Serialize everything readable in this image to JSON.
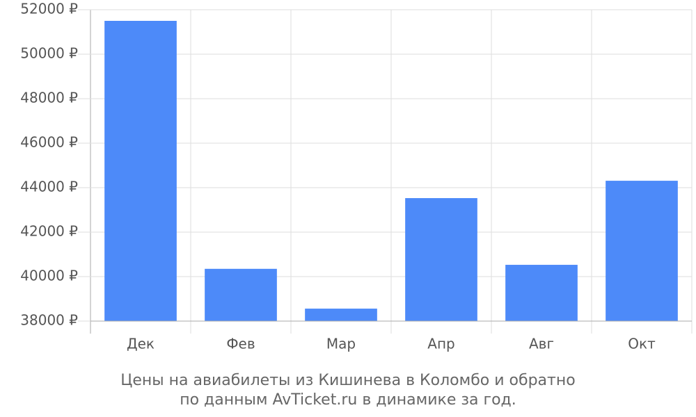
{
  "chart_data": {
    "type": "bar",
    "caption": [
      "Цены на авиабилеты из Кишинева в Коломбо и обратно",
      "по данным AvTicket.ru в динамике за год."
    ],
    "categories": [
      "Дек",
      "Фев",
      "Мар",
      "Апр",
      "Авг",
      "Окт"
    ],
    "values": [
      51500,
      40350,
      38560,
      43530,
      40530,
      44310
    ],
    "color": "#4d8af9",
    "ylim": [
      38000,
      52000
    ],
    "yticks": [
      {
        "value": 38000,
        "label": "38000 ₽"
      },
      {
        "value": 40000,
        "label": "40000 ₽"
      },
      {
        "value": 42000,
        "label": "42000 ₽"
      },
      {
        "value": 44000,
        "label": "44000 ₽"
      },
      {
        "value": 46000,
        "label": "46000 ₽"
      },
      {
        "value": 48000,
        "label": "48000 ₽"
      },
      {
        "value": 50000,
        "label": "50000 ₽"
      },
      {
        "value": 52000,
        "label": "52000 ₽"
      }
    ],
    "grid": true
  }
}
